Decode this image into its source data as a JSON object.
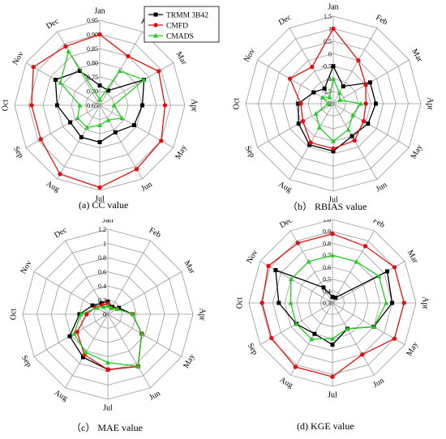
{
  "months": [
    "Jan",
    "Feb",
    "Mar",
    "Apr",
    "May",
    "Jun",
    "Jul",
    "Aug",
    "Sep",
    "Oct",
    "Nov",
    "Dec"
  ],
  "legend": [
    {
      "name": "TRMM 3B42",
      "color": "#000000",
      "marker": "square"
    },
    {
      "name": "CMFD",
      "color": "#e01010",
      "marker": "circle"
    },
    {
      "name": "CMADS",
      "color": "#22cc22",
      "marker": "triangle"
    }
  ],
  "chart_data": [
    {
      "type": "radar",
      "caption": "(a) CC value",
      "categories": [
        "Jan",
        "Feb",
        "Mar",
        "Apr",
        "May",
        "Jun",
        "Jul",
        "Aug",
        "Sep",
        "Oct",
        "Nov",
        "Dec"
      ],
      "rlim": [
        0.65,
        0.95
      ],
      "ticks": [
        "0.65",
        "0.70",
        "0.75",
        "0.80",
        "0.85",
        "0.90",
        "0.95"
      ],
      "series": [
        {
          "name": "TRMM 3B42",
          "values": [
            0.72,
            0.71,
            0.83,
            0.8,
            0.79,
            0.76,
            0.78,
            0.78,
            0.77,
            0.8,
            0.83,
            0.79
          ]
        },
        {
          "name": "CMFD",
          "values": [
            0.9,
            0.85,
            0.89,
            0.88,
            0.9,
            0.91,
            0.94,
            0.93,
            0.89,
            0.89,
            0.92,
            0.89
          ]
        },
        {
          "name": "CMADS",
          "values": [
            0.67,
            0.79,
            0.83,
            0.7,
            0.74,
            0.71,
            0.72,
            0.74,
            0.74,
            0.72,
            0.81,
            0.87
          ]
        }
      ]
    },
    {
      "type": "radar",
      "caption": "（b） RBIAS value",
      "categories": [
        "Jan",
        "Feb",
        "Mar",
        "Apr",
        "May",
        "Jun",
        "Jul",
        "Aug",
        "Sep",
        "Oct",
        "Nov",
        "Dec"
      ],
      "rlim": [
        -2,
        1.5
      ],
      "ticks": [
        "-2",
        "-1.5",
        "-1",
        "-0.5",
        "0",
        "0.5",
        "1",
        "1.5"
      ],
      "series": [
        {
          "name": "TRMM 3B42",
          "values": [
            -0.5,
            -1.2,
            -0.3,
            -0.3,
            -0.4,
            -0.5,
            -0.1,
            -0.1,
            -0.4,
            -0.6,
            -1.1,
            -1.3
          ]
        },
        {
          "name": "CMFD",
          "values": [
            1.0,
            0.0,
            -0.5,
            -0.7,
            -0.6,
            -0.3,
            -0.2,
            -0.2,
            -0.6,
            -0.7,
            0.0,
            -0.3
          ]
        },
        {
          "name": "CMADS",
          "values": [
            -1.0,
            -1.5,
            -1.7,
            -0.9,
            -1.1,
            -0.8,
            -0.5,
            -0.9,
            -1.2,
            -1.8,
            -1.5,
            -1.7
          ]
        }
      ]
    },
    {
      "type": "radar",
      "caption": "（c） MAE value",
      "categories": [
        "Jan",
        "Feb",
        "Mar",
        "Apr",
        "May",
        "Jun",
        "Jul",
        "Aug",
        "Sep",
        "Oct",
        "Nov",
        "Dec"
      ],
      "rlim": [
        0,
        1.2
      ],
      "ticks": [
        "0",
        "0.2",
        "0.4",
        "0.6",
        "0.8",
        "1",
        "1.2"
      ],
      "series": [
        {
          "name": "TRMM 3B42",
          "values": [
            0.18,
            0.12,
            0.18,
            0.35,
            0.55,
            0.85,
            0.78,
            0.7,
            0.62,
            0.4,
            0.25,
            0.18
          ]
        },
        {
          "name": "CMFD",
          "values": [
            0.15,
            0.1,
            0.15,
            0.35,
            0.55,
            0.85,
            0.78,
            0.66,
            0.5,
            0.3,
            0.2,
            0.15
          ]
        },
        {
          "name": "CMADS",
          "values": [
            0.12,
            0.1,
            0.15,
            0.35,
            0.55,
            0.85,
            0.68,
            0.62,
            0.55,
            0.38,
            0.18,
            0.12
          ]
        }
      ]
    },
    {
      "type": "radar",
      "caption": "(d) KGE value",
      "categories": [
        "Jan",
        "Feb",
        "Mar",
        "Apr",
        "May",
        "Jun",
        "Jul",
        "Aug",
        "Sep",
        "Oct",
        "Nov",
        "Dec"
      ],
      "rlim": [
        0.3,
        1.0
      ],
      "ticks": [
        "0.3",
        "0.4",
        "0.5",
        "0.6",
        "0.7",
        "0.8",
        "0.9",
        "1.0"
      ],
      "series": [
        {
          "name": "TRMM 3B42",
          "values": [
            0.35,
            0.35,
            0.83,
            0.8,
            0.7,
            0.55,
            0.65,
            0.6,
            0.65,
            0.75,
            0.85,
            0.45
          ]
        },
        {
          "name": "CMFD",
          "values": [
            0.88,
            0.85,
            0.9,
            0.9,
            0.9,
            0.8,
            0.92,
            0.92,
            0.89,
            0.89,
            0.92,
            0.88
          ]
        },
        {
          "name": "CMADS",
          "values": [
            0.7,
            0.7,
            0.75,
            0.75,
            0.7,
            0.55,
            0.6,
            0.65,
            0.65,
            0.65,
            0.7,
            0.7
          ]
        }
      ]
    }
  ]
}
